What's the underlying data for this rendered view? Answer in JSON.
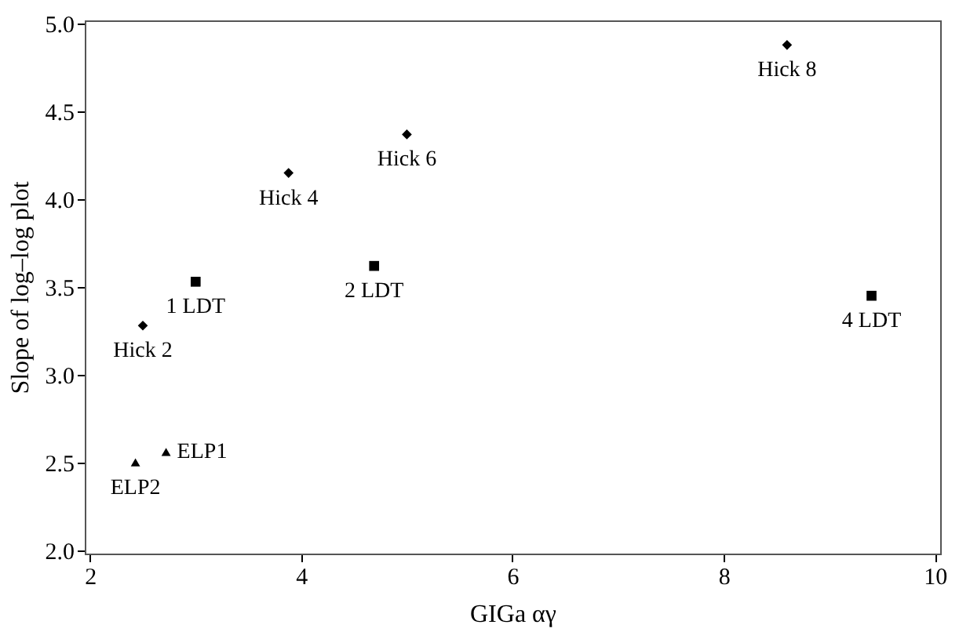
{
  "chart_data": {
    "type": "scatter",
    "xlabel": "GIGa αγ",
    "ylabel": "Slope of log–log plot",
    "xlim": [
      1.95,
      10.05
    ],
    "xticks": [
      2,
      4,
      6,
      8,
      10
    ],
    "ylim": [
      1.98,
      5.02
    ],
    "yticks": [
      {
        "value": 2,
        "label": "2.0"
      },
      {
        "value": 2.5,
        "label": "2.5"
      },
      {
        "value": 3,
        "label": "3.0"
      },
      {
        "value": 3.5,
        "label": "3.5"
      },
      {
        "value": 4,
        "label": "4.0"
      },
      {
        "value": 4.5,
        "label": "4.5"
      },
      {
        "value": 5,
        "label": "5.0"
      }
    ],
    "grid": false,
    "series": [
      {
        "color": "#000000",
        "marker": "diamond",
        "x": [
          2.5,
          3.88,
          5.0,
          8.6
        ],
        "values": [
          3.28,
          4.15,
          4.37,
          4.88
        ]
      },
      {
        "color": "#000000",
        "marker": "square",
        "x": [
          3.0,
          4.69,
          9.4
        ],
        "values": [
          3.53,
          3.62,
          3.45
        ]
      },
      {
        "color": "#000000",
        "marker": "triangle",
        "x": [
          2.72,
          2.43
        ],
        "values": [
          2.56,
          2.5
        ]
      }
    ],
    "annotations": [
      {
        "text": "Hick 2",
        "x": 2.5,
        "y": 3.28
      },
      {
        "text": "Hick 4",
        "x": 3.88,
        "y": 4.15
      },
      {
        "text": "Hick 6",
        "x": 5.0,
        "y": 4.37
      },
      {
        "text": "Hick 8",
        "x": 8.6,
        "y": 4.88
      },
      {
        "text": "1 LDT",
        "x": 3.0,
        "y": 3.53
      },
      {
        "text": "2 LDT",
        "x": 4.69,
        "y": 3.62
      },
      {
        "text": "4 LDT",
        "x": 9.4,
        "y": 3.45
      },
      {
        "text": "ELP1",
        "x": 2.72,
        "y": 2.56
      },
      {
        "text": "ELP2",
        "x": 2.43,
        "y": 2.5
      }
    ]
  }
}
